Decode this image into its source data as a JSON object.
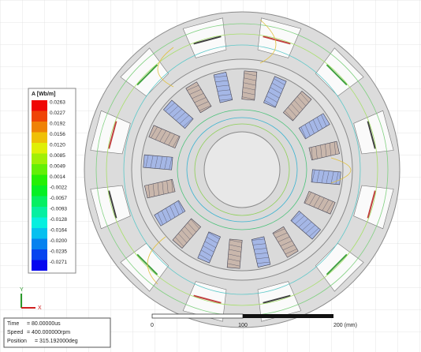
{
  "legend": {
    "title": "A [Wb/m]",
    "values": [
      "0.0263",
      "0.0227",
      "0.0192",
      "0.0156",
      "0.0120",
      "0.0085",
      "0.0049",
      "0.0014",
      "-0.0022",
      "-0.0057",
      "-0.0093",
      "-0.0128",
      "-0.0164",
      "-0.0200",
      "-0.0235",
      "-0.0271"
    ]
  },
  "axes": {
    "y": "Y",
    "x": "X"
  },
  "info": [
    {
      "label": "Time",
      "value": "= 80.00000us"
    },
    {
      "label": "Speed",
      "value": "= 400.000000rpm"
    },
    {
      "label": "Position",
      "value": "= 315.192000deg"
    }
  ],
  "scale": {
    "labels": [
      "0",
      "100",
      "200 (mm)"
    ]
  }
}
